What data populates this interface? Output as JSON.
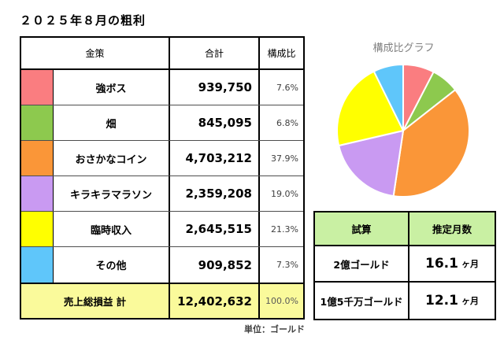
{
  "title": "２０２５年８月の粗利",
  "main_table": {
    "headers": {
      "item": "金策",
      "total": "合計",
      "ratio": "構成比"
    },
    "rows": [
      {
        "label": "強ボス",
        "total": "939,750",
        "ratio": "7.6%",
        "color": "#FA7D80"
      },
      {
        "label": "畑",
        "total": "845,095",
        "ratio": "6.8%",
        "color": "#8DC94E"
      },
      {
        "label": "おさかなコイン",
        "total": "4,703,212",
        "ratio": "37.9%",
        "color": "#FA9638"
      },
      {
        "label": "キラキラマラソン",
        "total": "2,359,208",
        "ratio": "19.0%",
        "color": "#C99AF2"
      },
      {
        "label": "臨時収入",
        "total": "2,645,515",
        "ratio": "21.3%",
        "color": "#FFFF00"
      },
      {
        "label": "その他",
        "total": "909,852",
        "ratio": "7.3%",
        "color": "#5FC6FA"
      }
    ],
    "total_row": {
      "label": "売上総損益 計",
      "total": "12,402,632",
      "ratio": "100.0%",
      "bg": "#FAFA9B"
    },
    "unit_note": "単位：ゴールド"
  },
  "chart_data": {
    "type": "pie",
    "title": "構成比グラフ",
    "categories": [
      "強ボス",
      "畑",
      "おさかなコイン",
      "キラキラマラソン",
      "臨時収入",
      "その他"
    ],
    "values": [
      7.6,
      6.8,
      37.9,
      19.0,
      21.3,
      7.3
    ],
    "colors": [
      "#FA7D80",
      "#8DC94E",
      "#FA9638",
      "#C99AF2",
      "#FFFF00",
      "#5FC6FA"
    ],
    "start_angle_deg": -90,
    "direction": "clockwise",
    "slice_border_color": "#FFFFFF",
    "legend": "none"
  },
  "estimate_table": {
    "headers": {
      "scenario": "試算",
      "months": "推定月数"
    },
    "header_bg": "#C9F0A3",
    "rows": [
      {
        "scenario": "2億ゴールド",
        "months_value": "16.1",
        "months_unit": "ヶ月"
      },
      {
        "scenario": "1億5千万ゴールド",
        "months_value": "12.1",
        "months_unit": "ヶ月"
      }
    ]
  }
}
